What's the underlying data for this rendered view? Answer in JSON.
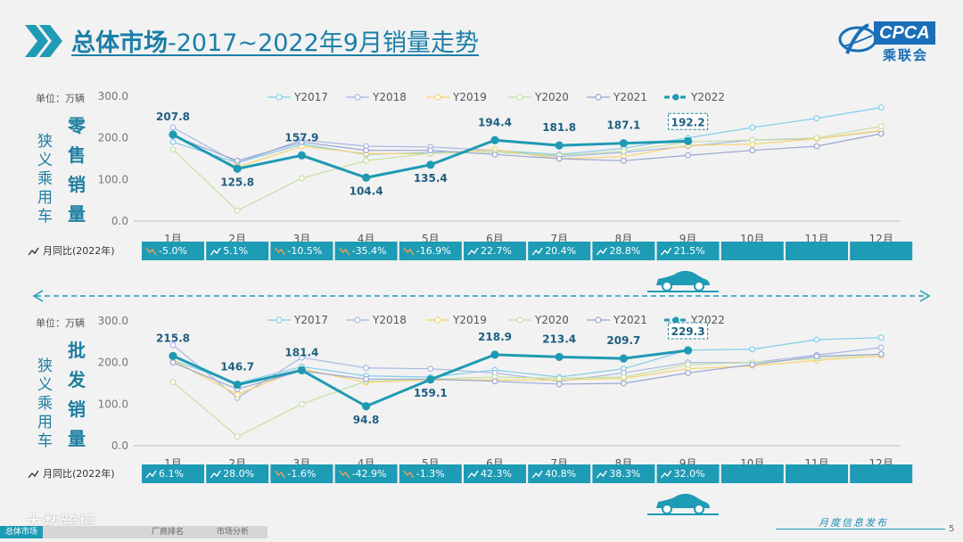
{
  "header": {
    "title_main": "总体市场",
    "title_sub": "-2017~2022年9月销量走势"
  },
  "logo": {
    "text": "CPCA",
    "cn": "乘联会"
  },
  "footer": {
    "tabs": [
      "总体市场",
      "厂商排名",
      "市场分析"
    ],
    "report": "月度信息发布",
    "page": "5",
    "watermark": "大数跨境"
  },
  "colors": {
    "Y2017": "#7fcce8",
    "Y2018": "#a9b7e6",
    "Y2019": "#f6d36b",
    "Y2020": "#c5e0a5",
    "Y2021": "#9aa6d2",
    "Y2022": "#1f9ab3",
    "yoy_bar": "#1e9bb5"
  },
  "chart_data": [
    {
      "type": "line",
      "unit_label": "单位：万辆",
      "side_label": "狭义乘用车",
      "category_label": "零售销量",
      "categories": [
        "1月",
        "2月",
        "3月",
        "4月",
        "5月",
        "6月",
        "7月",
        "8月",
        "9月",
        "10月",
        "11月",
        "12月"
      ],
      "ylim": [
        0,
        300
      ],
      "yticks": [
        "0.0",
        "100.0",
        "200.0",
        "300.0"
      ],
      "series": [
        {
          "name": "Y2017",
          "values": [
            190,
            140,
            185,
            160,
            165,
            170,
            160,
            175,
            200,
            225,
            247,
            273
          ]
        },
        {
          "name": "Y2018",
          "values": [
            225,
            140,
            195,
            180,
            178,
            170,
            155,
            165,
            180,
            195,
            198,
            217
          ]
        },
        {
          "name": "Y2019",
          "values": [
            205,
            130,
            180,
            162,
            162,
            172,
            150,
            155,
            182,
            185,
            198,
            218
          ]
        },
        {
          "name": "Y2020",
          "values": [
            172,
            25,
            103,
            145,
            163,
            165,
            158,
            168,
            190,
            195,
            200,
            228
          ]
        },
        {
          "name": "Y2021",
          "values": [
            205,
            145,
            190,
            170,
            170,
            160,
            150,
            145,
            158,
            170,
            180,
            210
          ]
        },
        {
          "name": "Y2022",
          "values": [
            207.8,
            125.8,
            157.9,
            104.4,
            135.4,
            194.4,
            181.8,
            187.1,
            192.2,
            null,
            null,
            null
          ]
        }
      ],
      "data_labels": [
        "207.8",
        "125.8",
        "157.9",
        "104.4",
        "135.4",
        "194.4",
        "181.8",
        "187.1",
        "192.2"
      ],
      "yoy_label": "月同比(2022年)",
      "yoy": [
        "-5.0%",
        "5.1%",
        "-10.5%",
        "-35.4%",
        "-16.9%",
        "22.7%",
        "20.4%",
        "28.8%",
        "21.5%",
        "",
        "",
        ""
      ],
      "yoy_dir": [
        "down",
        "up",
        "down",
        "down",
        "down",
        "up",
        "up",
        "up",
        "up",
        "",
        "",
        ""
      ]
    },
    {
      "type": "line",
      "unit_label": "单位：万辆",
      "side_label": "狭义乘用车",
      "category_label": "批发销量",
      "categories": [
        "1月",
        "2月",
        "3月",
        "4月",
        "5月",
        "6月",
        "7月",
        "8月",
        "9月",
        "10月",
        "11月",
        "12月"
      ],
      "ylim": [
        0,
        300
      ],
      "yticks": [
        "0.0",
        "100.0",
        "200.0",
        "300.0"
      ],
      "series": [
        {
          "name": "Y2017",
          "values": [
            205,
            150,
            190,
            168,
            165,
            182,
            165,
            185,
            230,
            232,
            255,
            260
          ]
        },
        {
          "name": "Y2018",
          "values": [
            242,
            115,
            212,
            187,
            185,
            175,
            155,
            175,
            200,
            200,
            218,
            236
          ]
        },
        {
          "name": "Y2019",
          "values": [
            205,
            123,
            185,
            152,
            158,
            158,
            158,
            162,
            185,
            192,
            205,
            216
          ]
        },
        {
          "name": "Y2020",
          "values": [
            153,
            22,
            100,
            155,
            160,
            165,
            162,
            165,
            195,
            200,
            210,
            220
          ]
        },
        {
          "name": "Y2021",
          "values": [
            200,
            136,
            180,
            160,
            160,
            155,
            148,
            150,
            175,
            195,
            215,
            220
          ]
        },
        {
          "name": "Y2022",
          "values": [
            215.8,
            146.7,
            181.4,
            94.8,
            159.1,
            218.9,
            213.4,
            209.7,
            229.3,
            null,
            null,
            null
          ]
        }
      ],
      "data_labels": [
        "215.8",
        "146.7",
        "181.4",
        "94.8",
        "159.1",
        "218.9",
        "213.4",
        "209.7",
        "229.3"
      ],
      "yoy_label": "月同比(2022年)",
      "yoy": [
        "6.1%",
        "28.0%",
        "-1.6%",
        "-42.9%",
        "-1.3%",
        "42.3%",
        "40.8%",
        "38.3%",
        "32.0%",
        "",
        "",
        ""
      ],
      "yoy_dir": [
        "up",
        "up",
        "down",
        "down",
        "down",
        "up",
        "up",
        "up",
        "up",
        "",
        "",
        ""
      ]
    }
  ]
}
